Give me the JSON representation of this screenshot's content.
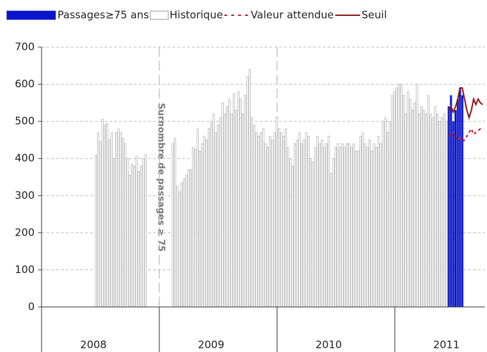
{
  "chart_data": {
    "type": "bar",
    "annotation": "Surnombre de passages ≥ 75",
    "xlim": [
      0,
      196
    ],
    "xticks": [
      {
        "value": 26,
        "label": "2008"
      },
      {
        "value": 78,
        "label": "2009"
      },
      {
        "value": 130,
        "label": "2010"
      },
      {
        "value": 182,
        "label": "2011"
      }
    ],
    "ylim": [
      0,
      700
    ],
    "yticks": [
      0,
      100,
      200,
      300,
      400,
      500,
      600,
      700
    ],
    "grid": true,
    "legend": "top",
    "series": [
      {
        "name": "Passages≥75 ans",
        "type": "bar",
        "color": "#0a14c8",
        "x": [
          180,
          181,
          182,
          183,
          184,
          185,
          186
        ],
        "values": [
          540,
          570,
          500,
          530,
          560,
          590,
          570
        ]
      },
      {
        "name": "Historique",
        "type": "bar",
        "color": "#ffffff",
        "x": [
          24,
          25,
          26,
          27,
          28,
          29,
          30,
          31,
          32,
          33,
          34,
          35,
          36,
          37,
          38,
          39,
          40,
          41,
          42,
          43,
          44,
          45,
          46,
          58,
          59,
          60,
          61,
          62,
          63,
          64,
          65,
          66,
          67,
          68,
          69,
          70,
          71,
          72,
          73,
          74,
          75,
          76,
          77,
          78,
          79,
          80,
          81,
          82,
          83,
          84,
          85,
          86,
          87,
          88,
          89,
          90,
          91,
          92,
          93,
          94,
          95,
          96,
          97,
          98,
          99,
          100,
          101,
          102,
          103,
          104,
          105,
          106,
          107,
          108,
          109,
          110,
          111,
          112,
          113,
          114,
          115,
          116,
          117,
          118,
          119,
          120,
          121,
          122,
          123,
          124,
          125,
          126,
          127,
          128,
          129,
          130,
          131,
          132,
          133,
          134,
          135,
          136,
          137,
          138,
          139,
          140,
          141,
          142,
          143,
          144,
          145,
          146,
          147,
          148,
          149,
          150,
          151,
          152,
          153,
          154,
          155,
          156,
          157,
          158,
          159,
          160,
          161,
          162,
          163,
          164,
          165,
          166,
          167,
          168,
          169,
          170,
          171,
          172,
          173,
          174,
          175,
          176,
          177,
          178,
          179
        ],
        "values": [
          410,
          470,
          445,
          505,
          490,
          495,
          450,
          470,
          400,
          470,
          480,
          470,
          455,
          440,
          400,
          355,
          385,
          380,
          405,
          365,
          380,
          400,
          410,
          440,
          455,
          325,
          310,
          335,
          345,
          355,
          370,
          370,
          430,
          425,
          480,
          420,
          440,
          460,
          450,
          480,
          500,
          520,
          470,
          490,
          510,
          550,
          520,
          540,
          560,
          520,
          575,
          530,
          580,
          560,
          520,
          570,
          620,
          640,
          510,
          490,
          470,
          460,
          470,
          480,
          440,
          430,
          460,
          450,
          470,
          510,
          480,
          470,
          460,
          480,
          430,
          400,
          380,
          440,
          450,
          470,
          440,
          450,
          470,
          460,
          400,
          390,
          430,
          460,
          440,
          450,
          430,
          440,
          460,
          360,
          400,
          430,
          440,
          430,
          440,
          430,
          440,
          440,
          430,
          440,
          420,
          420,
          460,
          470,
          440,
          430,
          450,
          420,
          440,
          430,
          460,
          440,
          500,
          510,
          470,
          500,
          570,
          580,
          590,
          600,
          600,
          570,
          520,
          580,
          560,
          530,
          550,
          600,
          520,
          540,
          530,
          520,
          570,
          520,
          510,
          540,
          520,
          500,
          510,
          520,
          500
        ]
      },
      {
        "name": "Valeur attendue",
        "type": "line",
        "style": "dashed",
        "color": "#c0182a",
        "x": [
          180,
          181,
          182,
          183,
          184,
          185,
          186,
          187,
          188,
          189,
          190,
          191,
          192,
          193,
          194,
          195
        ],
        "values": [
          460,
          465,
          470,
          460,
          450,
          455,
          445,
          450,
          460,
          470,
          480,
          465,
          470,
          475,
          480,
          480
        ]
      },
      {
        "name": "Seuil",
        "type": "line",
        "style": "solid",
        "color": "#8b1a1a",
        "x": [
          180,
          181,
          182,
          183,
          184,
          185,
          186,
          187,
          188,
          189,
          190,
          191,
          192,
          193,
          194,
          195
        ],
        "values": [
          530,
          540,
          525,
          540,
          560,
          590,
          590,
          560,
          530,
          510,
          530,
          560,
          545,
          560,
          550,
          545
        ]
      }
    ]
  }
}
